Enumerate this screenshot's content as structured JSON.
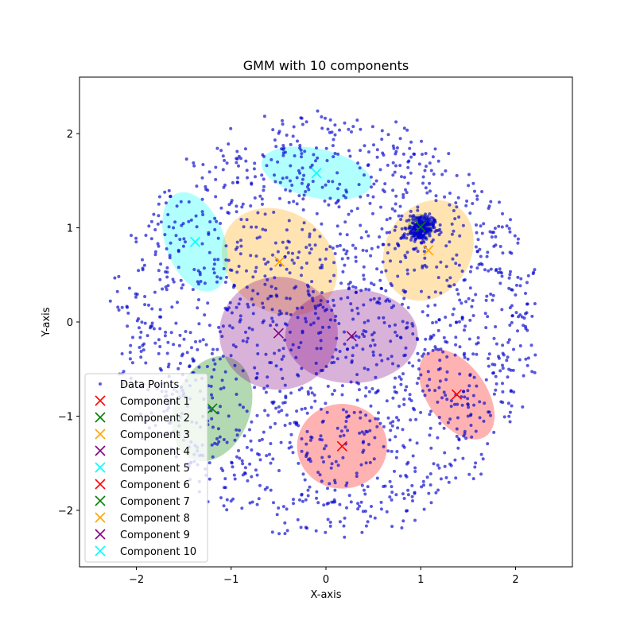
{
  "chart_data": {
    "type": "scatter",
    "title": "GMM with 10 components",
    "xlabel": "X-axis",
    "ylabel": "Y-axis",
    "xlim": [
      -2.6,
      2.6
    ],
    "ylim": [
      -2.6,
      2.6
    ],
    "xticks": [
      -2,
      -1,
      0,
      1,
      2
    ],
    "yticks": [
      -2,
      -1,
      0,
      1,
      2
    ],
    "tick_labels": [
      "−2",
      "−1",
      "0",
      "1",
      "2"
    ],
    "grid": false,
    "legend_position": "lower-left",
    "point_color": "#0000cc",
    "data_points_label": "Data Points",
    "data_points_description": "about 2000 points roughly uniform in a disk of radius ~2.3 centered at origin, plus a dense cluster near (1.0, 1.0)",
    "components": [
      {
        "name": "Component 1",
        "color": "#ff0000",
        "mean": [
          1.38,
          -0.77
        ],
        "width": 0.62,
        "height": 1.08,
        "angle": -35
      },
      {
        "name": "Component 2",
        "color": "#008000",
        "mean": [
          -1.2,
          -0.92
        ],
        "width": 0.8,
        "height": 1.15,
        "angle": 20
      },
      {
        "name": "Component 3",
        "color": "#ffa500",
        "mean": [
          -0.49,
          0.64
        ],
        "width": 1.05,
        "height": 1.3,
        "angle": -55
      },
      {
        "name": "Component 4",
        "color": "#800080",
        "mean": [
          0.27,
          -0.15
        ],
        "width": 1.4,
        "height": 1.0,
        "angle": 0
      },
      {
        "name": "Component 5",
        "color": "#00ffff",
        "mean": [
          -1.38,
          0.85
        ],
        "width": 0.62,
        "height": 1.1,
        "angle": -20
      },
      {
        "name": "Component 6",
        "color": "#ff0000",
        "mean": [
          0.17,
          -1.32
        ],
        "width": 0.95,
        "height": 0.9,
        "angle": 0
      },
      {
        "name": "Component 7",
        "color": "#008000",
        "mean": [
          1.0,
          1.01
        ],
        "width": 0.28,
        "height": 0.28,
        "angle": 0
      },
      {
        "name": "Component 8",
        "color": "#ffa500",
        "mean": [
          1.08,
          0.76
        ],
        "width": 0.9,
        "height": 1.12,
        "angle": 30
      },
      {
        "name": "Component 9",
        "color": "#800080",
        "mean": [
          -0.5,
          -0.12
        ],
        "width": 1.25,
        "height": 1.2,
        "angle": 0
      },
      {
        "name": "Component 10",
        "color": "#00ffff",
        "mean": [
          -0.1,
          1.58
        ],
        "width": 1.18,
        "height": 0.52,
        "angle": 12
      }
    ]
  }
}
